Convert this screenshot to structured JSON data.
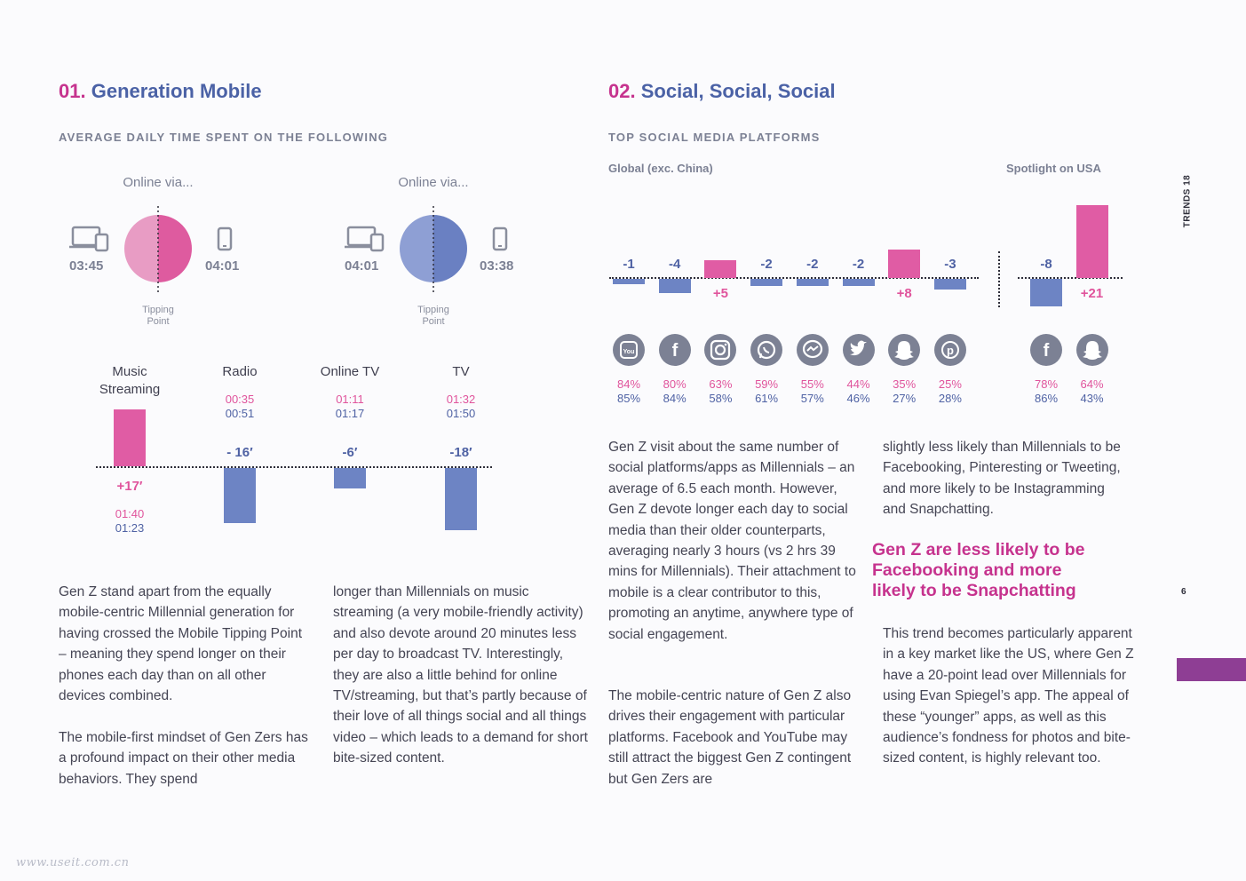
{
  "colors": {
    "pink": "#e05ca4",
    "blue": "#6d84c4",
    "magenta": "#c6338e",
    "title_blue": "#4b62a6",
    "gray": "#7c8194",
    "tab": "#8e3e94"
  },
  "section1": {
    "num": "01.",
    "title": "Generation Mobile",
    "subtitle": "AVERAGE DAILY TIME SPENT ON THE FOLLOWING",
    "pie_left": {
      "label": "Online via...",
      "left_time": "03:45",
      "right_time": "04:01",
      "tip": "Tipping\nPoint",
      "left_icon": "laptop-icon",
      "right_icon": "phone-icon"
    },
    "pie_right": {
      "label": "Online via...",
      "left_time": "04:01",
      "right_time": "03:38",
      "tip": "Tipping\nPoint",
      "left_icon": "laptop-icon",
      "right_icon": "phone-icon"
    },
    "para1": "Gen Z stand apart from the equally mobile-centric Millennial generation for having crossed the Mobile Tipping Point – meaning they spend longer on their phones each day than on all other devices combined.",
    "para2": "The mobile-first mindset of Gen Zers has a profound impact on their other media behaviors. They spend",
    "para3": "longer than Millennials on music streaming (a very mobile-friendly activity) and also devote around 20 minutes less per day to broadcast TV. Interestingly, they are also a little behind for online TV/streaming, but that’s partly because of their love of all things social and all things video – which leads to a demand for short bite-sized content."
  },
  "chart_data": [
    {
      "type": "pie",
      "title": "Online via...",
      "slices": [
        {
          "name": "laptop",
          "value": "03:45"
        },
        {
          "name": "phone",
          "value": "04:01"
        }
      ]
    },
    {
      "type": "pie",
      "title": "Online via...",
      "slices": [
        {
          "name": "laptop",
          "value": "04:01"
        },
        {
          "name": "phone",
          "value": "03:38"
        }
      ]
    },
    {
      "type": "bar",
      "categories": [
        "Music Streaming",
        "Radio",
        "Online TV",
        "TV"
      ],
      "diff_labels": [
        "+17′",
        "- 16′",
        "-6′",
        "-18′"
      ],
      "values": [
        17,
        -16,
        -6,
        -18
      ],
      "genz_times": [
        "01:40",
        "00:35",
        "01:11",
        "01:32"
      ],
      "millennial_times": [
        "01:23",
        "00:51",
        "01:17",
        "01:50"
      ]
    },
    {
      "type": "bar",
      "title": "Global (exc. China)",
      "categories": [
        "YouTube",
        "Facebook",
        "Instagram",
        "WhatsApp",
        "Messenger",
        "Twitter",
        "Snapchat",
        "Pinterest"
      ],
      "values": [
        -1,
        -4,
        5,
        -2,
        -2,
        -2,
        8,
        -3
      ],
      "labels": [
        "-1",
        "-4",
        "+5",
        "-2",
        "-2",
        "-2",
        "+8",
        "-3"
      ],
      "genz_pct": [
        "84%",
        "80%",
        "63%",
        "59%",
        "55%",
        "44%",
        "35%",
        "25%"
      ],
      "millennial_pct": [
        "85%",
        "84%",
        "58%",
        "61%",
        "57%",
        "46%",
        "27%",
        "28%"
      ]
    },
    {
      "type": "bar",
      "title": "Spotlight on USA",
      "categories": [
        "Facebook",
        "Snapchat"
      ],
      "values": [
        -8,
        21
      ],
      "labels": [
        "-8",
        "+21"
      ],
      "genz_pct": [
        "78%",
        "64%"
      ],
      "millennial_pct": [
        "86%",
        "43%"
      ]
    }
  ],
  "media_bars": [
    {
      "line1": "Music",
      "line2": "Streaming",
      "diff": "+17′",
      "t1": "01:40",
      "t2": "01:23"
    },
    {
      "line1": "Radio",
      "line2": "",
      "diff": "- 16′",
      "t1": "00:35",
      "t2": "00:51"
    },
    {
      "line1": "Online TV",
      "line2": "",
      "diff": "-6′",
      "t1": "01:11",
      "t2": "01:17"
    },
    {
      "line1": "TV",
      "line2": "",
      "diff": "-18′",
      "t1": "01:32",
      "t2": "01:50"
    }
  ],
  "section2": {
    "num": "02.",
    "title": "Social, Social, Social",
    "subtitle": "TOP SOCIAL MEDIA PLATFORMS",
    "global_label": "Global (exc. China)",
    "usa_label": "Spotlight on USA",
    "para1": "Gen Z visit about the same number of social platforms/apps as Millennials – an average of 6.5 each month. However, Gen Z devote longer each day to social media than their older counterparts, averaging nearly 3 hours (vs 2 hrs 39 mins for Millennials). Their attachment to mobile is a clear contributor to this, promoting an anytime, anywhere type of social engagement.",
    "para2": "The mobile-centric nature of Gen Z also drives their engagement with particular platforms. Facebook and YouTube may still attract the biggest Gen Z contingent but Gen Zers are",
    "para3": "slightly less likely than Millennials to be Facebooking, Pinteresting or Tweeting, and more likely to be Instagramming and Snapchatting.",
    "quote": "Gen Z are less likely to be Facebooking and more likely to be Snapchatting",
    "para4": "This trend becomes particularly apparent in a key market like the US, where Gen Z have a 20-point lead over Millennials for using Evan Spiegel’s app. The appeal of these “younger” apps, as well as this audience’s fondness for photos and bite-sized content, is highly relevant too."
  },
  "social": [
    {
      "icon": "youtube-icon",
      "glyph": "You",
      "label": "-1",
      "g": "84%",
      "m": "85%"
    },
    {
      "icon": "facebook-icon",
      "glyph": "f",
      "label": "-4",
      "g": "80%",
      "m": "84%"
    },
    {
      "icon": "instagram-icon",
      "glyph": "ig",
      "label": "+5",
      "g": "63%",
      "m": "58%"
    },
    {
      "icon": "whatsapp-icon",
      "glyph": "wa",
      "label": "-2",
      "g": "59%",
      "m": "61%"
    },
    {
      "icon": "messenger-icon",
      "glyph": "ms",
      "label": "-2",
      "g": "55%",
      "m": "57%"
    },
    {
      "icon": "twitter-icon",
      "glyph": "tw",
      "label": "-2",
      "g": "44%",
      "m": "46%"
    },
    {
      "icon": "snapchat-icon",
      "glyph": "sc",
      "label": "+8",
      "g": "35%",
      "m": "27%"
    },
    {
      "icon": "pinterest-icon",
      "glyph": "p",
      "label": "-3",
      "g": "25%",
      "m": "28%"
    }
  ],
  "usa": [
    {
      "icon": "facebook-icon",
      "glyph": "f",
      "label": "-8",
      "g": "78%",
      "m": "86%"
    },
    {
      "icon": "snapchat-icon",
      "glyph": "sc",
      "label": "+21",
      "g": "64%",
      "m": "43%"
    }
  ],
  "side": {
    "label": "TRENDS 18",
    "page": "6"
  },
  "watermark": "www.useit.com.cn"
}
